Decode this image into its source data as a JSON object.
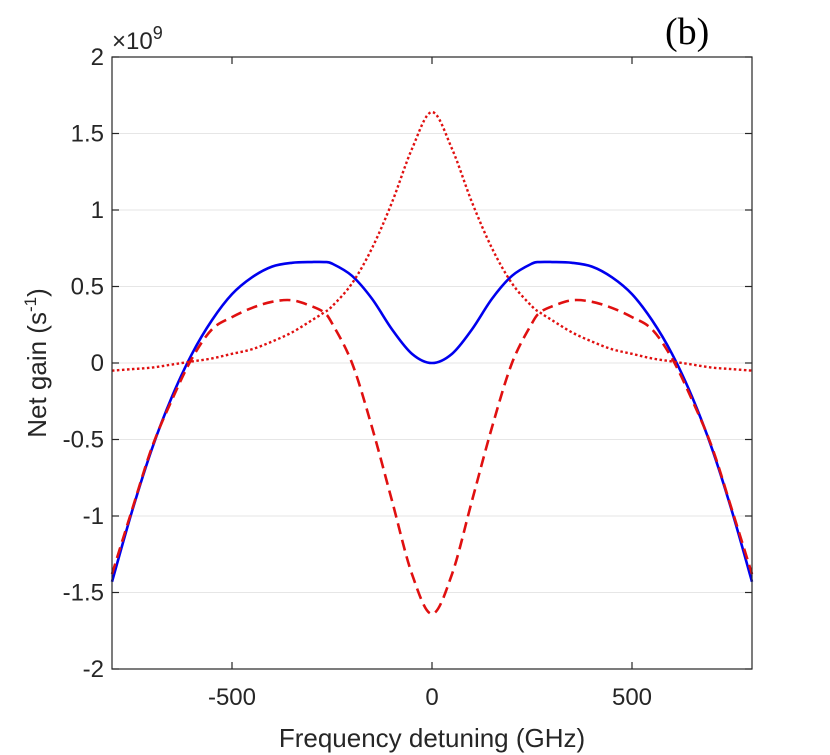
{
  "chart_data": {
    "type": "line",
    "panel_label": "(b)",
    "xlabel": "Frequency detuning (GHz)",
    "ylabel": "Net gain (s",
    "ylabel_sup": "-1",
    "ylabel_close": ")",
    "y_multiplier": "×10",
    "y_multiplier_exp": "9",
    "xlim": [
      -800,
      800
    ],
    "ylim": [
      -2,
      2
    ],
    "grid": "horizontal",
    "xticks": [
      {
        "value": -500,
        "label": "-500"
      },
      {
        "value": 0,
        "label": "0"
      },
      {
        "value": 500,
        "label": "500"
      }
    ],
    "yticks": [
      {
        "value": 2,
        "label": "2"
      },
      {
        "value": 1.5,
        "label": "1.5"
      },
      {
        "value": 1,
        "label": "1"
      },
      {
        "value": 0.5,
        "label": "0.5"
      },
      {
        "value": 0,
        "label": "0"
      },
      {
        "value": -0.5,
        "label": "-0.5"
      },
      {
        "value": -1,
        "label": "-1"
      },
      {
        "value": -1.5,
        "label": "-1.5"
      },
      {
        "value": -2,
        "label": "-2"
      }
    ],
    "x": [
      -800,
      -750,
      -700,
      -650,
      -600,
      -550,
      -500,
      -450,
      -400,
      -350,
      -300,
      -270,
      -250,
      -200,
      -150,
      -100,
      -50,
      0,
      50,
      100,
      150,
      200,
      250,
      270,
      300,
      350,
      400,
      450,
      500,
      550,
      600,
      650,
      700,
      750,
      800
    ],
    "series": [
      {
        "name": "solid",
        "color": "#0000ee",
        "style": "solid",
        "values": [
          -1.43,
          -0.97,
          -0.56,
          -0.22,
          0.06,
          0.28,
          0.45,
          0.56,
          0.63,
          0.655,
          0.66,
          0.66,
          0.65,
          0.57,
          0.42,
          0.22,
          0.06,
          0.0,
          0.06,
          0.22,
          0.42,
          0.57,
          0.65,
          0.66,
          0.66,
          0.655,
          0.63,
          0.56,
          0.45,
          0.28,
          0.06,
          -0.22,
          -0.56,
          -0.97,
          -1.43
        ]
      },
      {
        "name": "dashed",
        "color": "#e01010",
        "style": "dashed",
        "values": [
          -1.38,
          -0.96,
          -0.55,
          -0.24,
          0.03,
          0.22,
          0.3,
          0.36,
          0.4,
          0.41,
          0.37,
          0.33,
          0.26,
          0.0,
          -0.42,
          -0.9,
          -1.38,
          -1.64,
          -1.38,
          -0.9,
          -0.42,
          0.0,
          0.26,
          0.33,
          0.37,
          0.41,
          0.4,
          0.36,
          0.3,
          0.22,
          0.03,
          -0.24,
          -0.55,
          -0.96,
          -1.38
        ]
      },
      {
        "name": "dotted",
        "color": "#e01010",
        "style": "dotted",
        "values": [
          -0.05,
          -0.04,
          -0.03,
          -0.01,
          0.01,
          0.03,
          0.06,
          0.09,
          0.14,
          0.2,
          0.28,
          0.33,
          0.37,
          0.52,
          0.75,
          1.05,
          1.4,
          1.64,
          1.4,
          1.05,
          0.75,
          0.52,
          0.37,
          0.33,
          0.28,
          0.2,
          0.14,
          0.09,
          0.06,
          0.03,
          0.01,
          -0.01,
          -0.03,
          -0.04,
          -0.05
        ]
      }
    ]
  }
}
